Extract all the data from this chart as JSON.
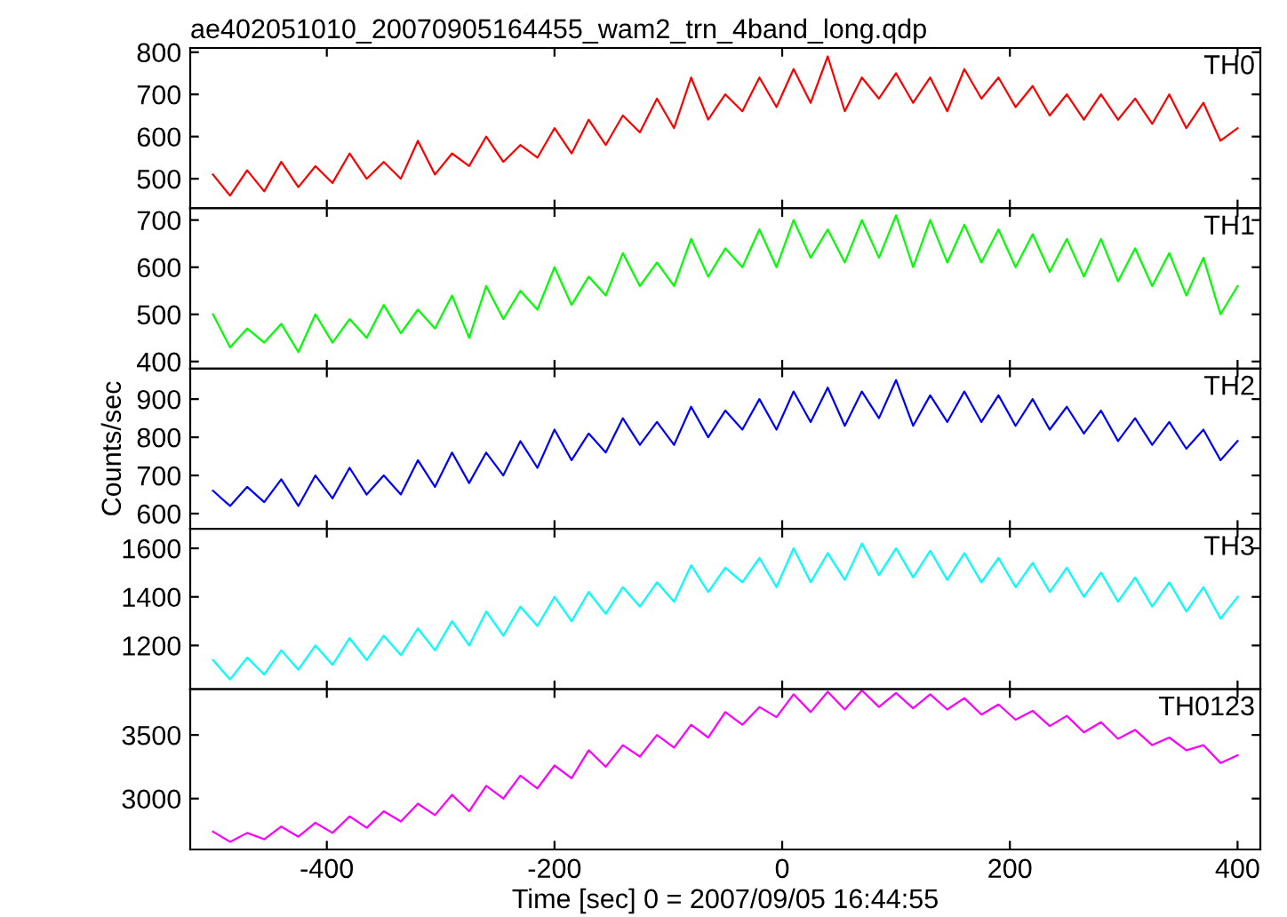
{
  "chart_data": [
    {
      "type": "line",
      "title": "ae402051010_20070905164455_wam2_trn_4band_long.qdp",
      "tick_labels": "y",
      "grid": false,
      "legend": false,
      "xlim": [
        -520,
        420
      ],
      "xticks": [
        -400,
        -200,
        0,
        200,
        400
      ],
      "ylim": [
        430,
        810
      ],
      "yticks": [
        500,
        600,
        700,
        800
      ],
      "x": [
        -500,
        -485,
        -470,
        -455,
        -440,
        -425,
        -410,
        -395,
        -380,
        -365,
        -350,
        -335,
        -320,
        -305,
        -290,
        -275,
        -260,
        -245,
        -230,
        -215,
        -200,
        -185,
        -170,
        -155,
        -140,
        -125,
        -110,
        -95,
        -80,
        -65,
        -50,
        -35,
        -20,
        -5,
        10,
        25,
        40,
        55,
        70,
        85,
        100,
        115,
        130,
        145,
        160,
        175,
        190,
        205,
        220,
        235,
        250,
        265,
        280,
        295,
        310,
        325,
        340,
        355,
        370,
        385,
        400
      ],
      "series": [
        {
          "name": "TH0",
          "color": "#ff0000",
          "values": [
            510,
            460,
            520,
            470,
            540,
            480,
            530,
            490,
            560,
            500,
            540,
            500,
            590,
            510,
            560,
            530,
            600,
            540,
            580,
            550,
            620,
            560,
            640,
            580,
            650,
            610,
            690,
            620,
            740,
            640,
            700,
            660,
            740,
            670,
            760,
            680,
            790,
            660,
            740,
            690,
            750,
            680,
            740,
            660,
            760,
            690,
            740,
            670,
            720,
            650,
            700,
            640,
            700,
            640,
            690,
            630,
            700,
            620,
            680,
            590,
            620
          ]
        }
      ]
    },
    {
      "type": "line",
      "tick_labels": "y",
      "grid": false,
      "legend": false,
      "xlim": [
        -520,
        420
      ],
      "xticks": [
        -400,
        -200,
        0,
        200,
        400
      ],
      "ylim": [
        385,
        725
      ],
      "yticks": [
        400,
        500,
        600,
        700
      ],
      "x": [
        -500,
        -485,
        -470,
        -455,
        -440,
        -425,
        -410,
        -395,
        -380,
        -365,
        -350,
        -335,
        -320,
        -305,
        -290,
        -275,
        -260,
        -245,
        -230,
        -215,
        -200,
        -185,
        -170,
        -155,
        -140,
        -125,
        -110,
        -95,
        -80,
        -65,
        -50,
        -35,
        -20,
        -5,
        10,
        25,
        40,
        55,
        70,
        85,
        100,
        115,
        130,
        145,
        160,
        175,
        190,
        205,
        220,
        235,
        250,
        265,
        280,
        295,
        310,
        325,
        340,
        355,
        370,
        385,
        400
      ],
      "series": [
        {
          "name": "TH1",
          "color": "#00ff00",
          "values": [
            500,
            430,
            470,
            440,
            480,
            420,
            500,
            440,
            490,
            450,
            520,
            460,
            510,
            470,
            540,
            450,
            560,
            490,
            550,
            510,
            600,
            520,
            580,
            540,
            630,
            560,
            610,
            560,
            660,
            580,
            640,
            600,
            680,
            600,
            700,
            620,
            680,
            610,
            700,
            620,
            710,
            600,
            700,
            610,
            690,
            610,
            680,
            600,
            670,
            590,
            660,
            580,
            660,
            570,
            640,
            560,
            630,
            540,
            620,
            500,
            560
          ]
        }
      ]
    },
    {
      "type": "line",
      "ylabel": "Counts/sec",
      "tick_labels": "y",
      "grid": false,
      "legend": false,
      "xlim": [
        -520,
        420
      ],
      "xticks": [
        -400,
        -200,
        0,
        200,
        400
      ],
      "ylim": [
        560,
        980
      ],
      "yticks": [
        600,
        700,
        800,
        900
      ],
      "x": [
        -500,
        -485,
        -470,
        -455,
        -440,
        -425,
        -410,
        -395,
        -380,
        -365,
        -350,
        -335,
        -320,
        -305,
        -290,
        -275,
        -260,
        -245,
        -230,
        -215,
        -200,
        -185,
        -170,
        -155,
        -140,
        -125,
        -110,
        -95,
        -80,
        -65,
        -50,
        -35,
        -20,
        -5,
        10,
        25,
        40,
        55,
        70,
        85,
        100,
        115,
        130,
        145,
        160,
        175,
        190,
        205,
        220,
        235,
        250,
        265,
        280,
        295,
        310,
        325,
        340,
        355,
        370,
        385,
        400
      ],
      "series": [
        {
          "name": "TH2",
          "color": "#0000ff",
          "values": [
            660,
            620,
            670,
            630,
            690,
            620,
            700,
            640,
            720,
            650,
            700,
            650,
            740,
            670,
            760,
            680,
            760,
            700,
            790,
            720,
            820,
            740,
            810,
            760,
            850,
            780,
            840,
            780,
            880,
            800,
            870,
            820,
            900,
            820,
            920,
            840,
            930,
            830,
            920,
            850,
            950,
            830,
            910,
            840,
            920,
            840,
            910,
            830,
            900,
            820,
            880,
            810,
            870,
            790,
            850,
            780,
            840,
            770,
            820,
            740,
            790
          ]
        }
      ]
    },
    {
      "type": "line",
      "tick_labels": "y",
      "grid": false,
      "legend": false,
      "xlim": [
        -520,
        420
      ],
      "xticks": [
        -400,
        -200,
        0,
        200,
        400
      ],
      "ylim": [
        1020,
        1680
      ],
      "yticks": [
        1200,
        1400,
        1600
      ],
      "x": [
        -500,
        -485,
        -470,
        -455,
        -440,
        -425,
        -410,
        -395,
        -380,
        -365,
        -350,
        -335,
        -320,
        -305,
        -290,
        -275,
        -260,
        -245,
        -230,
        -215,
        -200,
        -185,
        -170,
        -155,
        -140,
        -125,
        -110,
        -95,
        -80,
        -65,
        -50,
        -35,
        -20,
        -5,
        10,
        25,
        40,
        55,
        70,
        85,
        100,
        115,
        130,
        145,
        160,
        175,
        190,
        205,
        220,
        235,
        250,
        265,
        280,
        295,
        310,
        325,
        340,
        355,
        370,
        385,
        400
      ],
      "series": [
        {
          "name": "TH3",
          "color": "#00ffff",
          "values": [
            1140,
            1060,
            1150,
            1080,
            1180,
            1100,
            1200,
            1120,
            1230,
            1140,
            1240,
            1160,
            1270,
            1180,
            1300,
            1200,
            1340,
            1240,
            1360,
            1280,
            1400,
            1300,
            1420,
            1330,
            1440,
            1360,
            1460,
            1380,
            1530,
            1420,
            1520,
            1460,
            1560,
            1440,
            1600,
            1460,
            1580,
            1470,
            1620,
            1490,
            1600,
            1480,
            1590,
            1470,
            1580,
            1460,
            1560,
            1440,
            1540,
            1420,
            1520,
            1400,
            1500,
            1380,
            1480,
            1360,
            1460,
            1340,
            1440,
            1310,
            1400
          ]
        }
      ]
    },
    {
      "type": "line",
      "xlabel": "Time [sec] 0 = 2007/09/05 16:44:55",
      "grid": false,
      "legend": false,
      "xlim": [
        -520,
        420
      ],
      "xticks": [
        -400,
        -200,
        0,
        200,
        400
      ],
      "ylim": [
        2600,
        3860
      ],
      "yticks": [
        3000,
        3500
      ],
      "x": [
        -500,
        -485,
        -470,
        -455,
        -440,
        -425,
        -410,
        -395,
        -380,
        -365,
        -350,
        -335,
        -320,
        -305,
        -290,
        -275,
        -260,
        -245,
        -230,
        -215,
        -200,
        -185,
        -170,
        -155,
        -140,
        -125,
        -110,
        -95,
        -80,
        -65,
        -50,
        -35,
        -20,
        -5,
        10,
        25,
        40,
        55,
        70,
        85,
        100,
        115,
        130,
        145,
        160,
        175,
        190,
        205,
        220,
        235,
        250,
        265,
        280,
        295,
        310,
        325,
        340,
        355,
        370,
        385,
        400
      ],
      "series": [
        {
          "name": "TH0123",
          "color": "#ff00ff",
          "values": [
            2740,
            2660,
            2730,
            2680,
            2780,
            2700,
            2810,
            2730,
            2860,
            2770,
            2900,
            2820,
            2960,
            2870,
            3030,
            2900,
            3100,
            3000,
            3180,
            3080,
            3260,
            3160,
            3380,
            3250,
            3420,
            3330,
            3500,
            3400,
            3580,
            3480,
            3680,
            3580,
            3720,
            3640,
            3820,
            3680,
            3840,
            3700,
            3850,
            3720,
            3830,
            3710,
            3820,
            3700,
            3790,
            3660,
            3740,
            3620,
            3690,
            3570,
            3650,
            3520,
            3600,
            3470,
            3540,
            3420,
            3480,
            3380,
            3420,
            3280,
            3340
          ]
        }
      ]
    }
  ]
}
